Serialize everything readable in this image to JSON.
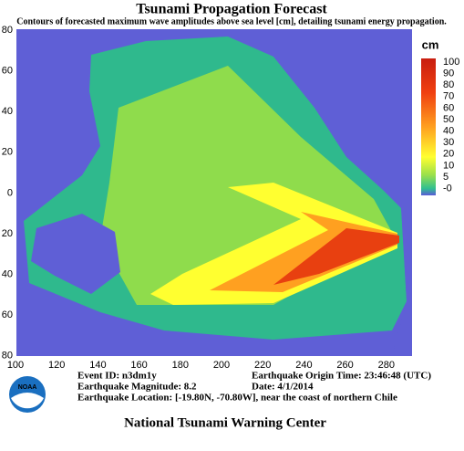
{
  "header": {
    "title": "Tsunami Propagation Forecast",
    "subtitle": "Contours of forecasted maximum wave amplitudes above sea level [cm], detailing tsunami energy propagation."
  },
  "map": {
    "lat_labels": [
      "80",
      "60",
      "40",
      "20",
      "0",
      "20",
      "40",
      "60",
      "80"
    ],
    "lon_labels": [
      "100",
      "120",
      "140",
      "160",
      "180",
      "200",
      "220",
      "240",
      "260",
      "280"
    ]
  },
  "legend": {
    "unit": "cm",
    "labels": [
      "100",
      "90",
      "80",
      "70",
      "60",
      "50",
      "40",
      "30",
      "20",
      "10",
      "5",
      "-0"
    ]
  },
  "info": {
    "event_id": "Event ID: n3dm1y",
    "magnitude": "Earthquake Magnitude: 8.2",
    "location": "Earthquake Location: [-19.80N, -70.80W], near the coast of northern Chile",
    "origin_time": "Earthquake Origin Time: 23:46:48 (UTC)",
    "date": "Date: 4/1/2014"
  },
  "footer": {
    "text": "National Tsunami Warning Center"
  }
}
